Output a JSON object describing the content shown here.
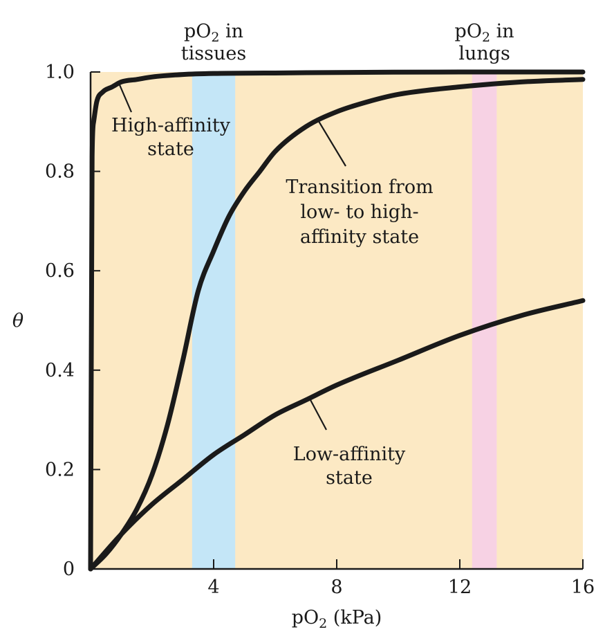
{
  "chart_data": {
    "type": "line",
    "xlabel": "pO2 (kPa)",
    "ylabel": "θ",
    "xlim": [
      0,
      16
    ],
    "ylim": [
      0,
      1.0
    ],
    "x_ticks": [
      4,
      8,
      12,
      16
    ],
    "y_ticks": [
      0,
      0.2,
      0.4,
      0.6,
      0.8,
      1.0
    ],
    "x_tick_labels": [
      "4",
      "8",
      "12",
      "16"
    ],
    "y_tick_labels": [
      "0",
      "0.2",
      "0.4",
      "0.6",
      "0.8",
      "1.0"
    ],
    "grid": false,
    "colors": {
      "plot_background": "#fce9c4",
      "tissues_band": "#c4e6f7",
      "lungs_band": "#f7d2e4",
      "curve": "#1a1a1a"
    },
    "bands": [
      {
        "name": "tissues",
        "x_range": [
          3.3,
          4.7
        ],
        "label_lines": [
          "pO2 in",
          "tissues"
        ]
      },
      {
        "name": "lungs",
        "x_range": [
          12.4,
          13.2
        ],
        "label_lines": [
          "pO2 in",
          "lungs"
        ]
      }
    ],
    "series": [
      {
        "name": "High-affinity state",
        "label_lines": [
          "High-affinity",
          "state"
        ],
        "x": [
          0,
          0.05,
          0.1,
          0.2,
          0.4,
          0.7,
          1.0,
          1.5,
          2,
          3,
          4,
          6,
          8,
          12,
          16
        ],
        "values": [
          0,
          0.83,
          0.9,
          0.94,
          0.96,
          0.97,
          0.98,
          0.985,
          0.99,
          0.995,
          0.997,
          0.998,
          0.999,
          1.0,
          1.0
        ]
      },
      {
        "name": "Transition from low- to high-affinity state",
        "label_lines": [
          "Transition from",
          "low- to high-",
          "affinity state"
        ],
        "x": [
          0,
          0.5,
          1,
          1.5,
          2,
          2.5,
          3,
          3.5,
          4,
          4.5,
          5,
          5.5,
          6,
          7,
          8,
          9,
          10,
          12,
          14,
          16
        ],
        "values": [
          0,
          0.03,
          0.07,
          0.12,
          0.19,
          0.29,
          0.42,
          0.56,
          0.64,
          0.71,
          0.76,
          0.8,
          0.84,
          0.89,
          0.92,
          0.94,
          0.955,
          0.97,
          0.98,
          0.985
        ]
      },
      {
        "name": "Low-affinity state",
        "label_lines": [
          "Low-affinity",
          "state"
        ],
        "x": [
          0,
          1,
          2,
          3,
          4,
          5,
          6,
          7,
          8,
          10,
          12,
          14,
          16
        ],
        "values": [
          0,
          0.07,
          0.13,
          0.18,
          0.23,
          0.27,
          0.31,
          0.34,
          0.37,
          0.42,
          0.47,
          0.51,
          0.54
        ]
      }
    ],
    "annotations": [
      {
        "series": "High-affinity state",
        "text_lines": [
          "High-affinity",
          "state"
        ]
      },
      {
        "series": "Transition from low- to high-affinity state",
        "text_lines": [
          "Transition from",
          "low- to high-",
          "affinity state"
        ]
      },
      {
        "series": "Low-affinity state",
        "text_lines": [
          "Low-affinity",
          "state"
        ]
      }
    ]
  }
}
